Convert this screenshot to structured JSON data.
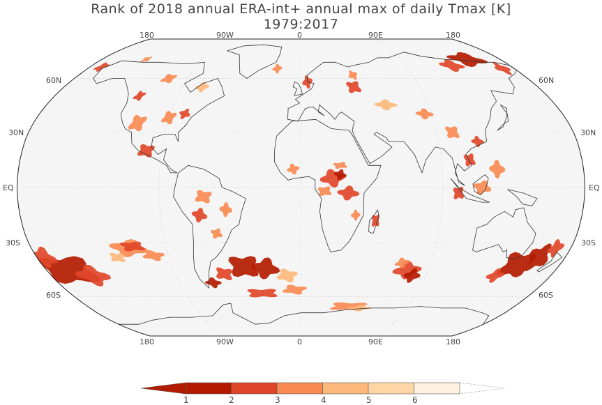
{
  "title": {
    "line1": "Rank of 2018 annual ERA-int+ annual max of daily Tmax [K]",
    "line2": "1979:2017"
  },
  "map": {
    "projection": "Robinson",
    "longitude_labels_top": [
      "180",
      "90W",
      "0",
      "90E",
      "180"
    ],
    "longitude_labels_bottom": [
      "180",
      "90W",
      "0",
      "90E",
      "180"
    ],
    "latitude_labels": [
      "60N",
      "30N",
      "EQ",
      "30S",
      "60S"
    ],
    "ocean_color": "#f5f5f5",
    "coast_color": "#333333",
    "grid": "dotted"
  },
  "legend": {
    "bins": [
      {
        "label": "1",
        "color": "#b31b00"
      },
      {
        "label": "2",
        "color": "#e0462a"
      },
      {
        "label": "3",
        "color": "#f88a52"
      },
      {
        "label": "4",
        "color": "#fdb87c"
      },
      {
        "label": "5",
        "color": "#fed6a6"
      },
      {
        "label": "6",
        "color": "#fff0df"
      }
    ],
    "tick_labels": [
      "1",
      "2",
      "3",
      "4",
      "5",
      "6"
    ],
    "lower_extension_color": "#b31b00"
  }
}
